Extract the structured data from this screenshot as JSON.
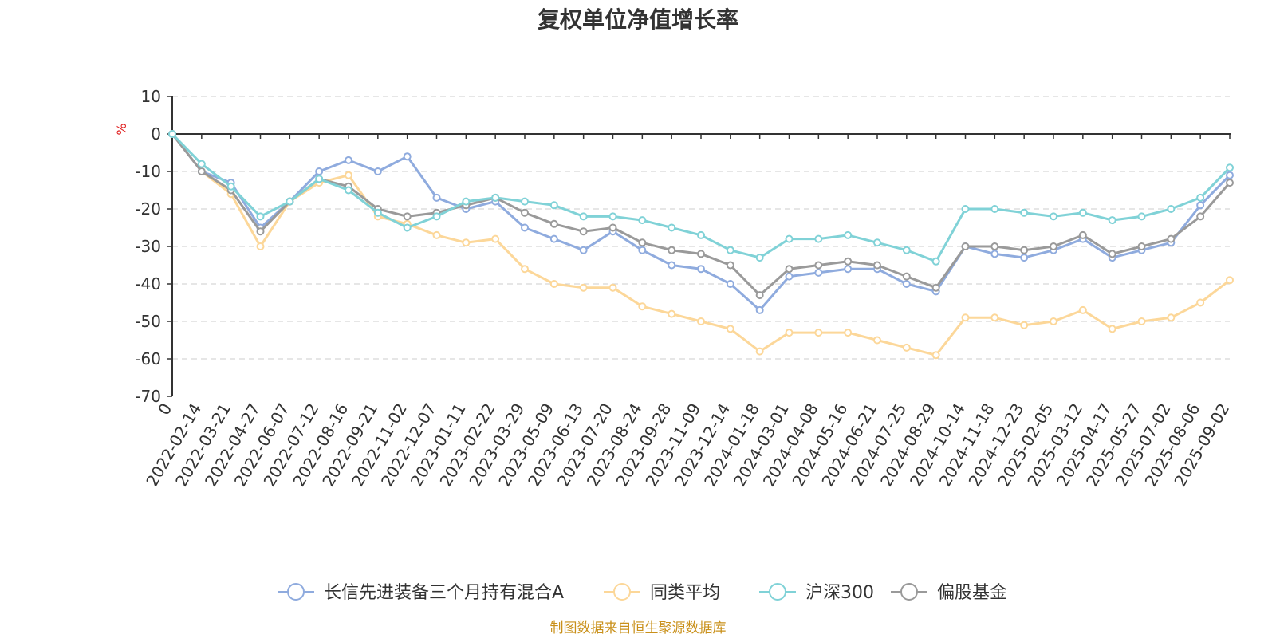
{
  "chart_data": {
    "type": "line",
    "title": "复权单位净值增长率",
    "y_unit": "%",
    "ylim": [
      -70,
      10
    ],
    "y_ticks": [
      10,
      0,
      -10,
      -20,
      -30,
      -40,
      -50,
      -60,
      -70
    ],
    "x_tick_labels": [
      "0",
      "2022-02-14",
      "2022-03-21",
      "2022-04-27",
      "2022-06-07",
      "2022-07-12",
      "2022-08-16",
      "2022-09-21",
      "2022-11-02",
      "2022-12-07",
      "2023-01-11",
      "2023-02-22",
      "2023-03-29",
      "2023-05-09",
      "2023-06-13",
      "2023-07-20",
      "2023-08-24",
      "2023-09-28",
      "2023-11-09",
      "2023-12-14",
      "2024-01-18",
      "2024-03-01",
      "2024-04-08",
      "2024-05-16",
      "2024-06-21",
      "2024-07-25",
      "2024-08-29",
      "2024-10-14",
      "2024-11-18",
      "2024-12-23",
      "2025-02-05",
      "2025-03-12",
      "2025-04-17",
      "2025-05-27",
      "2025-07-02",
      "2025-08-06",
      "2025-09-02"
    ],
    "grid": true,
    "legend_position": "bottom",
    "series": [
      {
        "name": "长信先进装备三个月持有混合A",
        "color": "#8fabde",
        "values": [
          0,
          -10,
          -13,
          -25,
          -18,
          -10,
          -7,
          -10,
          -6,
          -17,
          -20,
          -18,
          -25,
          -28,
          -31,
          -26,
          -31,
          -35,
          -36,
          -40,
          -47,
          -38,
          -37,
          -36,
          -36,
          -40,
          -42,
          -30,
          -32,
          -33,
          -31,
          -28,
          -33,
          -31,
          -29,
          -19,
          -11
        ]
      },
      {
        "name": "同类平均",
        "color": "#fcd799",
        "values": [
          0,
          -10,
          -16,
          -30,
          -18,
          -13,
          -11,
          -22,
          -24,
          -27,
          -29,
          -28,
          -36,
          -40,
          -41,
          -41,
          -46,
          -48,
          -50,
          -52,
          -58,
          -53,
          -53,
          -53,
          -55,
          -57,
          -59,
          -49,
          -49,
          -51,
          -50,
          -47,
          -52,
          -50,
          -49,
          -45,
          -39
        ]
      },
      {
        "name": "沪深300",
        "color": "#80d2d7",
        "values": [
          0,
          -8,
          -14,
          -22,
          -18,
          -12,
          -15,
          -21,
          -25,
          -22,
          -18,
          -17,
          -18,
          -19,
          -22,
          -22,
          -23,
          -25,
          -27,
          -31,
          -33,
          -28,
          -28,
          -27,
          -29,
          -31,
          -34,
          -20,
          -20,
          -21,
          -22,
          -21,
          -23,
          -22,
          -20,
          -17,
          -9
        ]
      },
      {
        "name": "偏股基金",
        "color": "#9a9a9a",
        "values": [
          0,
          -10,
          -15,
          -26,
          -18,
          -12,
          -14,
          -20,
          -22,
          -21,
          -19,
          -17,
          -21,
          -24,
          -26,
          -25,
          -29,
          -31,
          -32,
          -35,
          -43,
          -36,
          -35,
          -34,
          -35,
          -38,
          -41,
          -30,
          -30,
          -31,
          -30,
          -27,
          -32,
          -30,
          -28,
          -22,
          -13
        ]
      }
    ]
  },
  "footer": {
    "source": "制图数据来自恒生聚源数据库"
  },
  "colors": {
    "axis": "#333333",
    "grid": "#cccccc",
    "unit": "#e02020",
    "source": "#c9901a"
  }
}
